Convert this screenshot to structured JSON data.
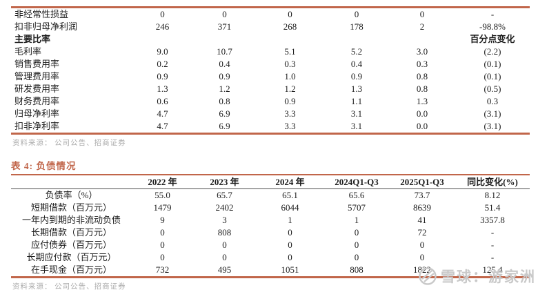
{
  "colors": {
    "accent_rule": "#C1664A",
    "header_rule": "#4A4A4A",
    "source_text": "#ACACAC",
    "watermark_text": "#C9C9C9"
  },
  "table1": {
    "rows": [
      {
        "label": "非经常性损益",
        "bold": false,
        "values": [
          "0",
          "0",
          "0",
          "0",
          "0",
          "-"
        ]
      },
      {
        "label": "扣非归母净利润",
        "bold": false,
        "values": [
          "246",
          "371",
          "268",
          "178",
          "2",
          "-98.8%"
        ]
      },
      {
        "label": "主要比率",
        "bold": true,
        "values": [
          "",
          "",
          "",
          "",
          "",
          "百分点变化"
        ]
      },
      {
        "label": "毛利率",
        "bold": false,
        "values": [
          "9.0",
          "10.7",
          "5.1",
          "5.2",
          "3.0",
          "(2.2)"
        ]
      },
      {
        "label": "销售费用率",
        "bold": false,
        "values": [
          "0.2",
          "0.4",
          "0.3",
          "0.4",
          "0.3",
          "(0.1)"
        ]
      },
      {
        "label": "管理费用率",
        "bold": false,
        "values": [
          "0.9",
          "0.9",
          "1.0",
          "0.9",
          "0.8",
          "(0.1)"
        ]
      },
      {
        "label": "研发费用率",
        "bold": false,
        "values": [
          "1.3",
          "1.2",
          "1.2",
          "1.3",
          "0.8",
          "(0.5)"
        ]
      },
      {
        "label": "财务费用率",
        "bold": false,
        "values": [
          "0.6",
          "0.8",
          "0.9",
          "1.1",
          "1.3",
          "0.3"
        ]
      },
      {
        "label": "归母净利率",
        "bold": false,
        "values": [
          "4.7",
          "6.9",
          "3.3",
          "3.1",
          "0.0",
          "(3.1)"
        ]
      },
      {
        "label": "扣非净利率",
        "bold": false,
        "values": [
          "4.7",
          "6.9",
          "3.3",
          "3.1",
          "0.0",
          "(3.1)"
        ]
      }
    ],
    "source": "资料来源： 公司公告、招商证券"
  },
  "table2": {
    "title": "表 4: 负债情况",
    "headers": [
      "",
      "2022 年",
      "2023 年",
      "2024 年",
      "2024Q1-Q3",
      "2025Q1-Q3",
      "同比变化(%)"
    ],
    "rows": [
      {
        "label": "负债率（%）",
        "bold": false,
        "values": [
          "55.0",
          "65.7",
          "65.1",
          "65.6",
          "73.7",
          "8.12"
        ]
      },
      {
        "label": "短期借款（百万元）",
        "bold": false,
        "values": [
          "1479",
          "2402",
          "6044",
          "5707",
          "8639",
          "51.4"
        ]
      },
      {
        "label": "一年内到期的非流动负债",
        "bold": false,
        "values": [
          "9",
          "3",
          "1",
          "1",
          "41",
          "3357.8"
        ]
      },
      {
        "label": "长期借款（百万元）",
        "bold": false,
        "values": [
          "0",
          "808",
          "0",
          "0",
          "72",
          "-"
        ]
      },
      {
        "label": "应付债券（百万元）",
        "bold": false,
        "values": [
          "0",
          "0",
          "0",
          "0",
          "0",
          "-"
        ]
      },
      {
        "label": "长期应付款（百万元）",
        "bold": false,
        "values": [
          "0",
          "0",
          "0",
          "0",
          "0",
          "-"
        ]
      },
      {
        "label": "在手现金（百万元）",
        "bold": false,
        "values": [
          "732",
          "495",
          "1051",
          "808",
          "1822",
          "125.4"
        ]
      }
    ],
    "source": "资料来源： 公司公告、招商证券"
  },
  "watermark": {
    "logo": "xueqiu-snowball-logo",
    "text": "雪球：游家洲"
  }
}
